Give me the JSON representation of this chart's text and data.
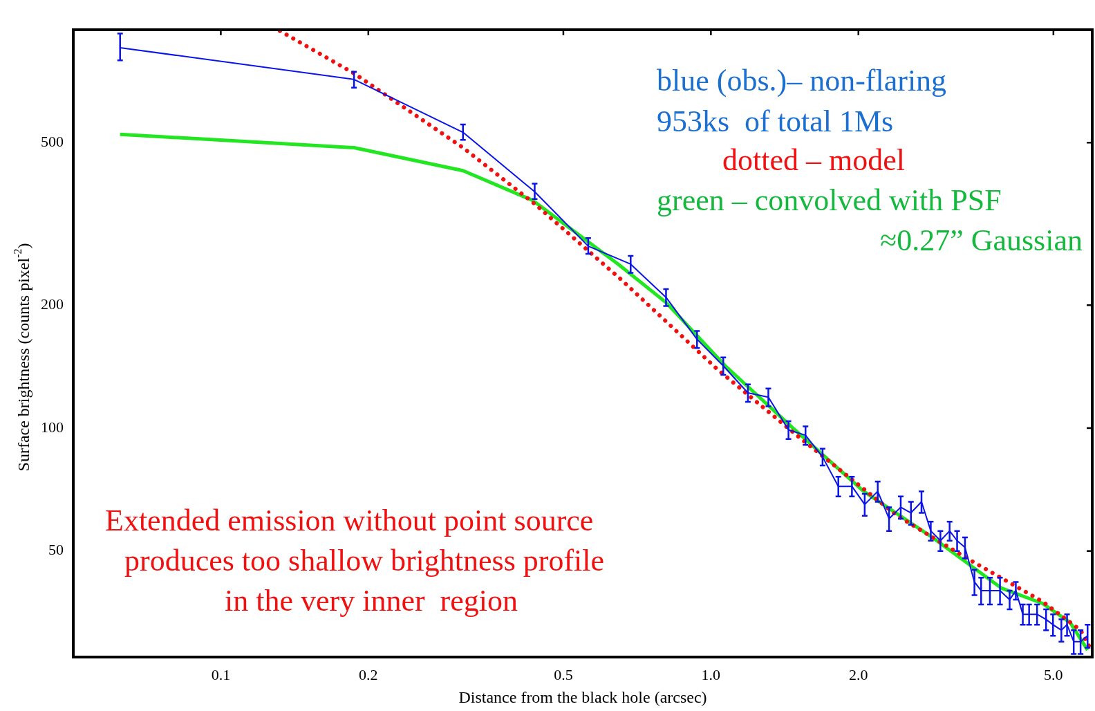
{
  "chart_data": {
    "type": "line",
    "xlabel": "Distance from the black hole (arcsec)",
    "ylabel": "Surface brightness (counts pixel$^{-2}$)",
    "log": "xy",
    "grid": false,
    "legend": false,
    "marker": "none",
    "xlim": [
      0.05,
      6
    ],
    "xticks": [
      0.1,
      0.2,
      0.5,
      {
        "value": 1,
        "label": "1.0"
      },
      {
        "value": 2,
        "label": "2.0"
      },
      {
        "value": 5,
        "label": "5.0"
      }
    ],
    "ylim": [
      27.5,
      945
    ],
    "yticks": [
      50,
      100,
      200,
      500
    ],
    "series": [
      {
        "color": "#0a14e6",
        "line_style": "solid",
        "x": [
          0.0623,
          0.187,
          0.312,
          0.437,
          0.562,
          0.686,
          0.81,
          0.937,
          1.06,
          1.19,
          1.31,
          1.44,
          1.56,
          1.69,
          1.82,
          1.94,
          2.06,
          2.19,
          2.31,
          2.44,
          2.56,
          2.69,
          2.81,
          2.94,
          3.07,
          3.18,
          3.3,
          3.45,
          3.56,
          3.71,
          3.89,
          4.07,
          4.19,
          4.33,
          4.46,
          4.63,
          4.83,
          4.99,
          5.19,
          5.33,
          5.5,
          5.68,
          5.87
        ],
        "values": [
          854,
          714,
          530,
          379,
          279,
          252,
          209,
          165,
          142,
          122,
          119,
          99,
          96,
          85,
          72,
          72,
          65,
          70,
          60,
          64,
          62,
          66,
          56,
          53,
          56,
          53,
          51,
          42,
          40,
          40,
          40,
          38,
          40,
          35,
          35,
          35,
          34,
          33,
          32,
          33,
          30,
          30,
          31
        ],
        "errors": [
          [
            795,
            925
          ],
          [
            682,
            746
          ],
          [
            508,
            554
          ],
          [
            364,
            397
          ],
          [
            267,
            292
          ],
          12,
          10,
          8,
          7,
          6,
          6,
          5,
          5,
          4,
          4,
          4,
          4,
          4,
          4,
          4,
          4,
          4,
          3,
          3,
          3,
          3,
          3,
          3,
          3,
          3,
          3,
          2,
          2,
          2,
          2,
          2,
          2,
          2,
          2,
          2,
          2,
          2,
          2
        ]
      },
      {
        "color": "#f01010",
        "line_style": "dotted",
        "x": [
          0.132,
          0.187,
          0.312,
          0.437,
          0.656,
          1.033,
          1.53,
          2.4,
          3.33,
          4.75,
          5.68,
          5.97
        ],
        "values": [
          939,
          739,
          486,
          354,
          231,
          139,
          94,
          61,
          48,
          37.6,
          32,
          28.6
        ]
      },
      {
        "color": "#22e622",
        "line_style": "solid",
        "x": [
          0.0623,
          0.187,
          0.312,
          0.433,
          0.647,
          0.81,
          1.07,
          1.47,
          2.05,
          2.83,
          3.91,
          4.75,
          5.41,
          5.87
        ],
        "values": [
          524,
          486,
          427,
          361,
          252,
          203,
          142,
          100,
          70,
          54,
          40.6,
          37.2,
          33.4,
          28.6
        ]
      }
    ],
    "annotations": [
      "blue (obs.)– non-flaring",
      "953ks  of total 1Ms",
      "dotted – model",
      "green – convolved with PSF",
      "≈0.27” Gaussian",
      "Extended emission without point source",
      "produces too shallow brightness profile",
      "in the very inner  region"
    ]
  }
}
